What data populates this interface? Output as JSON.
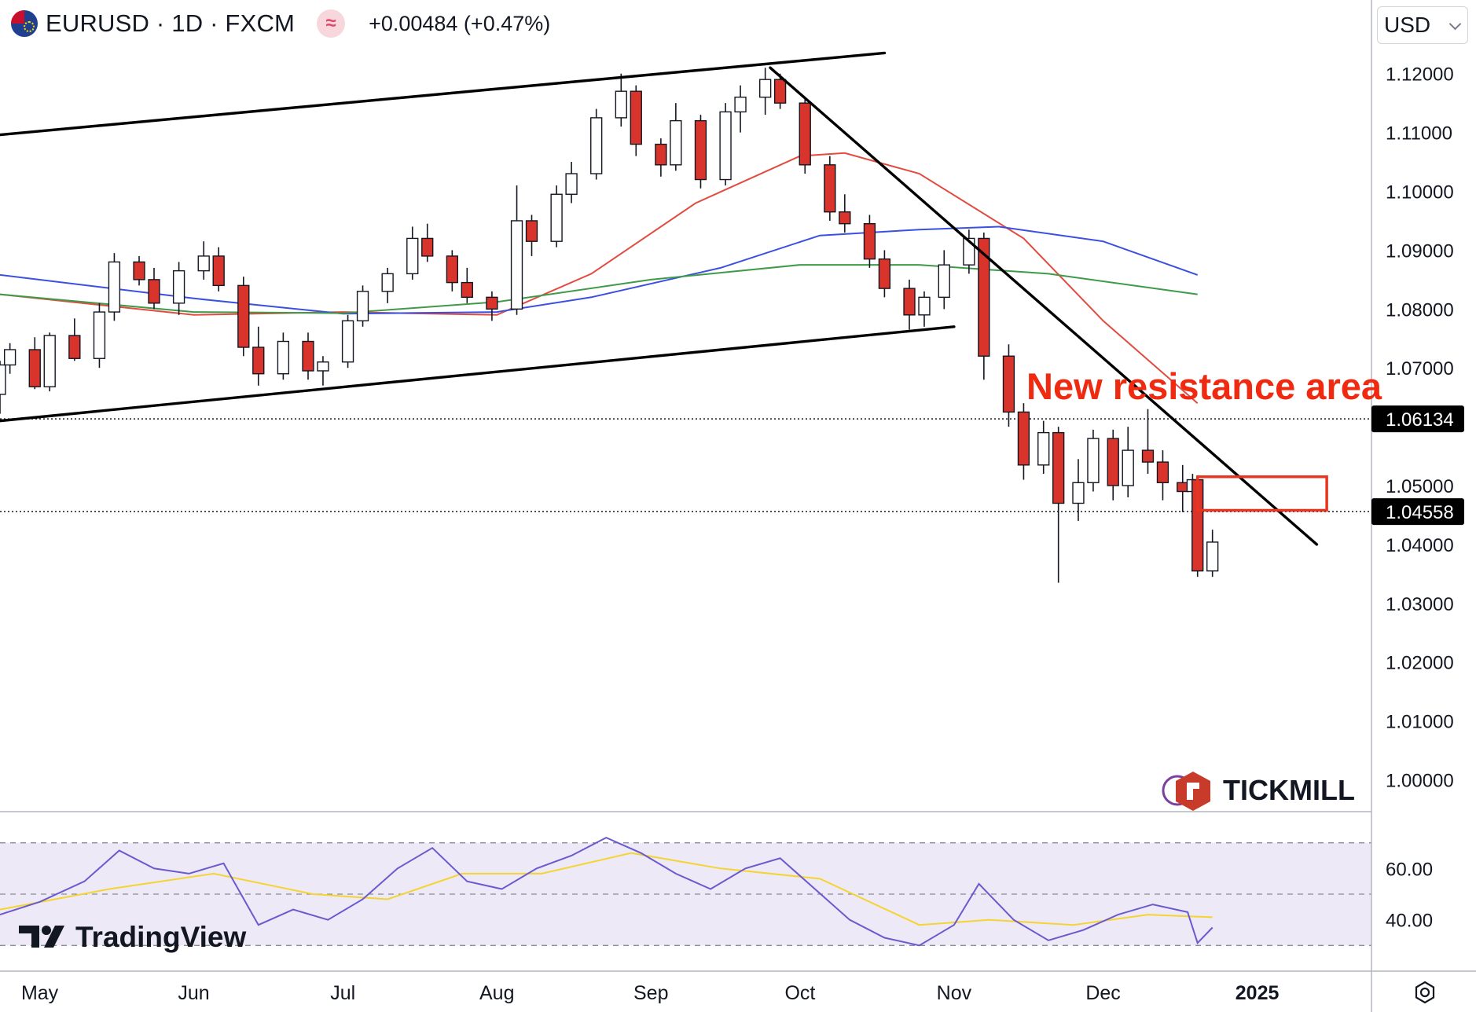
{
  "header": {
    "symbol_line": "EURUSD · 1D · FXCM",
    "indicator_glyph": "≈",
    "change": "+0.00484 (+0.47%)",
    "currency": "USD",
    "icons": [
      "eu-us-flag-icon",
      "indicator-icon",
      "chevron-down-icon",
      "settings-gear-icon"
    ]
  },
  "chart_data": {
    "type": "candlestick",
    "symbol": "EURUSD",
    "timeframe": "1D",
    "source": "FXCM",
    "y_axis": {
      "ticks": [
        "1.12000",
        "1.11000",
        "1.10000",
        "1.09000",
        "1.08000",
        "1.07000",
        "1.05000",
        "1.04000",
        "1.03000",
        "1.02000",
        "1.01000",
        "1.00000"
      ],
      "range": [
        0.995,
        1.1245
      ]
    },
    "x_axis": {
      "ticks": [
        "May",
        "Jun",
        "Jul",
        "Aug",
        "Sep",
        "Oct",
        "Nov",
        "Dec",
        "2025"
      ],
      "range": [
        "2024-04-23",
        "2025-01-24"
      ]
    },
    "price_labels": [
      {
        "value": "1.06134",
        "style": "dotted-line"
      },
      {
        "value": "1.04558",
        "style": "dotted-line"
      }
    ],
    "annotation": {
      "text": "New resistance area",
      "color": "#ef2a10"
    },
    "resistance_box": {
      "from": "2024-12-20",
      "to": "2025-01-15",
      "low": 1.0458,
      "high": 1.0515,
      "color": "#e8351f"
    },
    "trendlines": [
      {
        "name": "channel-top",
        "from": [
          "2024-04-23",
          1.1096
        ],
        "to": [
          "2024-10-18",
          1.1235
        ]
      },
      {
        "name": "channel-bottom",
        "from": [
          "2024-04-23",
          1.061
        ],
        "to": [
          "2024-11-01",
          1.077
        ]
      },
      {
        "name": "downtrend",
        "from": [
          "2024-09-25",
          1.121
        ],
        "to": [
          "2025-01-13",
          1.04
        ]
      }
    ],
    "moving_averages": [
      {
        "color": "#e24b3f",
        "points": [
          [
            "2024-04-23",
            1.0825
          ],
          [
            "2024-06-01",
            1.079
          ],
          [
            "2024-07-01",
            1.0795
          ],
          [
            "2024-08-01",
            1.079
          ],
          [
            "2024-08-20",
            1.086
          ],
          [
            "2024-09-10",
            1.098
          ],
          [
            "2024-10-01",
            1.106
          ],
          [
            "2024-10-10",
            1.1065
          ],
          [
            "2024-10-25",
            1.103
          ],
          [
            "2024-11-15",
            1.092
          ],
          [
            "2024-12-01",
            1.078
          ],
          [
            "2024-12-20",
            1.064
          ]
        ]
      },
      {
        "color": "#3b4fe0",
        "points": [
          [
            "2024-04-23",
            1.0858
          ],
          [
            "2024-06-01",
            1.0818
          ],
          [
            "2024-07-01",
            1.0792
          ],
          [
            "2024-08-01",
            1.0795
          ],
          [
            "2024-08-20",
            1.082
          ],
          [
            "2024-09-15",
            1.087
          ],
          [
            "2024-10-05",
            1.0925
          ],
          [
            "2024-10-25",
            1.0935
          ],
          [
            "2024-11-10",
            1.094
          ],
          [
            "2024-12-01",
            1.0915
          ],
          [
            "2024-12-20",
            1.0858
          ]
        ]
      },
      {
        "color": "#3f9a4a",
        "points": [
          [
            "2024-04-23",
            1.0825
          ],
          [
            "2024-06-01",
            1.0795
          ],
          [
            "2024-07-01",
            1.0793
          ],
          [
            "2024-08-01",
            1.0812
          ],
          [
            "2024-09-01",
            1.085
          ],
          [
            "2024-10-01",
            1.0875
          ],
          [
            "2024-10-25",
            1.0875
          ],
          [
            "2024-11-20",
            1.086
          ],
          [
            "2024-12-20",
            1.0825
          ]
        ]
      }
    ],
    "candles": [
      [
        "2024-04-23",
        1.0655,
        1.0712,
        1.0622,
        1.0705
      ],
      [
        "2024-04-25",
        1.0705,
        1.0742,
        1.069,
        1.0731
      ],
      [
        "2024-04-30",
        1.0731,
        1.0752,
        1.0664,
        1.0668
      ],
      [
        "2024-05-03",
        1.0668,
        1.076,
        1.066,
        1.0755
      ],
      [
        "2024-05-08",
        1.0755,
        1.0784,
        1.0712,
        1.0716
      ],
      [
        "2024-05-13",
        1.0716,
        1.081,
        1.07,
        1.0795
      ],
      [
        "2024-05-16",
        1.0795,
        1.0895,
        1.078,
        1.088
      ],
      [
        "2024-05-21",
        1.088,
        1.089,
        1.084,
        1.085
      ],
      [
        "2024-05-24",
        1.085,
        1.087,
        1.08,
        1.081
      ],
      [
        "2024-05-29",
        1.081,
        1.088,
        1.079,
        1.0865
      ],
      [
        "2024-06-03",
        1.0865,
        1.0915,
        1.085,
        1.089
      ],
      [
        "2024-06-06",
        1.089,
        1.0905,
        1.083,
        1.084
      ],
      [
        "2024-06-11",
        1.084,
        1.0855,
        1.072,
        1.0735
      ],
      [
        "2024-06-14",
        1.0735,
        1.077,
        1.067,
        1.069
      ],
      [
        "2024-06-19",
        1.069,
        1.076,
        1.068,
        1.0745
      ],
      [
        "2024-06-24",
        1.0745,
        1.076,
        1.068,
        1.0695
      ],
      [
        "2024-06-27",
        1.0695,
        1.072,
        1.067,
        1.071
      ],
      [
        "2024-07-02",
        1.071,
        1.079,
        1.07,
        1.078
      ],
      [
        "2024-07-05",
        1.078,
        1.084,
        1.077,
        1.083
      ],
      [
        "2024-07-10",
        1.083,
        1.087,
        1.081,
        1.086
      ],
      [
        "2024-07-15",
        1.086,
        1.094,
        1.085,
        1.092
      ],
      [
        "2024-07-18",
        1.092,
        1.0945,
        1.088,
        1.089
      ],
      [
        "2024-07-23",
        1.089,
        1.09,
        1.083,
        1.0845
      ],
      [
        "2024-07-26",
        1.0845,
        1.087,
        1.081,
        1.082
      ],
      [
        "2024-07-31",
        1.082,
        1.083,
        1.078,
        1.08
      ],
      [
        "2024-08-05",
        1.08,
        1.101,
        1.079,
        1.095
      ],
      [
        "2024-08-08",
        1.095,
        1.096,
        1.089,
        1.0915
      ],
      [
        "2024-08-13",
        1.0915,
        1.101,
        1.0905,
        1.0995
      ],
      [
        "2024-08-16",
        1.0995,
        1.105,
        1.098,
        1.103
      ],
      [
        "2024-08-21",
        1.103,
        1.114,
        1.102,
        1.1125
      ],
      [
        "2024-08-26",
        1.1125,
        1.12,
        1.111,
        1.117
      ],
      [
        "2024-08-29",
        1.117,
        1.118,
        1.106,
        1.108
      ],
      [
        "2024-09-03",
        1.108,
        1.109,
        1.1025,
        1.1045
      ],
      [
        "2024-09-06",
        1.1045,
        1.115,
        1.1035,
        1.112
      ],
      [
        "2024-09-11",
        1.112,
        1.113,
        1.1005,
        1.102
      ],
      [
        "2024-09-16",
        1.102,
        1.115,
        1.101,
        1.1135
      ],
      [
        "2024-09-19",
        1.1135,
        1.118,
        1.11,
        1.116
      ],
      [
        "2024-09-24",
        1.116,
        1.121,
        1.113,
        1.119
      ],
      [
        "2024-09-27",
        1.119,
        1.12,
        1.114,
        1.115
      ],
      [
        "2024-10-02",
        1.115,
        1.116,
        1.103,
        1.1045
      ],
      [
        "2024-10-07",
        1.1045,
        1.106,
        1.095,
        1.0965
      ],
      [
        "2024-10-10",
        1.0965,
        1.0995,
        1.093,
        1.0945
      ],
      [
        "2024-10-15",
        1.0945,
        1.096,
        1.087,
        1.0885
      ],
      [
        "2024-10-18",
        1.0885,
        1.09,
        1.082,
        1.0835
      ],
      [
        "2024-10-23",
        1.0835,
        1.085,
        1.0765,
        1.079
      ],
      [
        "2024-10-26",
        1.079,
        1.083,
        1.077,
        1.082
      ],
      [
        "2024-10-30",
        1.082,
        1.09,
        1.08,
        1.0875
      ],
      [
        "2024-11-04",
        1.0875,
        1.0935,
        1.086,
        1.092
      ],
      [
        "2024-11-07",
        1.092,
        1.093,
        1.068,
        1.072
      ],
      [
        "2024-11-12",
        1.072,
        1.074,
        1.06,
        1.0625
      ],
      [
        "2024-11-15",
        1.0625,
        1.064,
        1.051,
        1.0535
      ],
      [
        "2024-11-19",
        1.0535,
        1.061,
        1.052,
        1.059
      ],
      [
        "2024-11-22",
        1.059,
        1.06,
        1.0335,
        1.047
      ],
      [
        "2024-11-26",
        1.047,
        1.0545,
        1.044,
        1.0505
      ],
      [
        "2024-11-29",
        1.0505,
        1.0595,
        1.049,
        1.058
      ],
      [
        "2024-12-03",
        1.058,
        1.0595,
        1.0475,
        1.05
      ],
      [
        "2024-12-06",
        1.05,
        1.06,
        1.048,
        1.056
      ],
      [
        "2024-12-10",
        1.056,
        1.063,
        1.052,
        1.054
      ],
      [
        "2024-12-13",
        1.054,
        1.056,
        1.0475,
        1.0505
      ],
      [
        "2024-12-17",
        1.0505,
        1.0535,
        1.0455,
        1.049
      ],
      [
        "2024-12-19",
        1.049,
        1.052,
        1.047,
        1.051
      ],
      [
        "2024-12-20",
        1.051,
        1.0515,
        1.0345,
        1.0355
      ],
      [
        "2024-12-23",
        1.0355,
        1.0425,
        1.0345,
        1.0404
      ]
    ],
    "rsi": {
      "ticks": [
        "60.00",
        "40.00"
      ],
      "range": [
        20,
        80
      ],
      "band": [
        30,
        70
      ],
      "band_color": "#ede9f7",
      "line_color": "#6a5acd",
      "signal_color": "#f5d432",
      "values": [
        [
          "2024-04-23",
          42
        ],
        [
          "2024-05-01",
          47
        ],
        [
          "2024-05-10",
          55
        ],
        [
          "2024-05-17",
          67
        ],
        [
          "2024-05-24",
          60
        ],
        [
          "2024-05-31",
          58
        ],
        [
          "2024-06-07",
          62
        ],
        [
          "2024-06-14",
          38
        ],
        [
          "2024-06-21",
          44
        ],
        [
          "2024-06-28",
          40
        ],
        [
          "2024-07-05",
          48
        ],
        [
          "2024-07-12",
          60
        ],
        [
          "2024-07-19",
          68
        ],
        [
          "2024-07-26",
          55
        ],
        [
          "2024-08-02",
          52
        ],
        [
          "2024-08-09",
          60
        ],
        [
          "2024-08-16",
          65
        ],
        [
          "2024-08-23",
          72
        ],
        [
          "2024-08-30",
          66
        ],
        [
          "2024-09-06",
          58
        ],
        [
          "2024-09-13",
          52
        ],
        [
          "2024-09-20",
          60
        ],
        [
          "2024-09-27",
          64
        ],
        [
          "2024-10-04",
          52
        ],
        [
          "2024-10-11",
          40
        ],
        [
          "2024-10-18",
          33
        ],
        [
          "2024-10-25",
          30
        ],
        [
          "2024-11-01",
          38
        ],
        [
          "2024-11-06",
          54
        ],
        [
          "2024-11-13",
          40
        ],
        [
          "2024-11-20",
          32
        ],
        [
          "2024-11-27",
          36
        ],
        [
          "2024-12-04",
          42
        ],
        [
          "2024-12-11",
          46
        ],
        [
          "2024-12-18",
          43
        ],
        [
          "2024-12-20",
          31
        ],
        [
          "2024-12-23",
          37
        ]
      ],
      "signal": [
        [
          "2024-04-23",
          44
        ],
        [
          "2024-05-15",
          52
        ],
        [
          "2024-06-05",
          58
        ],
        [
          "2024-06-25",
          50
        ],
        [
          "2024-07-10",
          48
        ],
        [
          "2024-07-25",
          58
        ],
        [
          "2024-08-10",
          58
        ],
        [
          "2024-08-28",
          66
        ],
        [
          "2024-09-15",
          60
        ],
        [
          "2024-10-05",
          56
        ],
        [
          "2024-10-25",
          38
        ],
        [
          "2024-11-08",
          40
        ],
        [
          "2024-11-25",
          38
        ],
        [
          "2024-12-10",
          42
        ],
        [
          "2024-12-23",
          41
        ]
      ]
    }
  },
  "watermarks": {
    "tradingview": "TradingView",
    "tickmill": "TICKMILL"
  }
}
